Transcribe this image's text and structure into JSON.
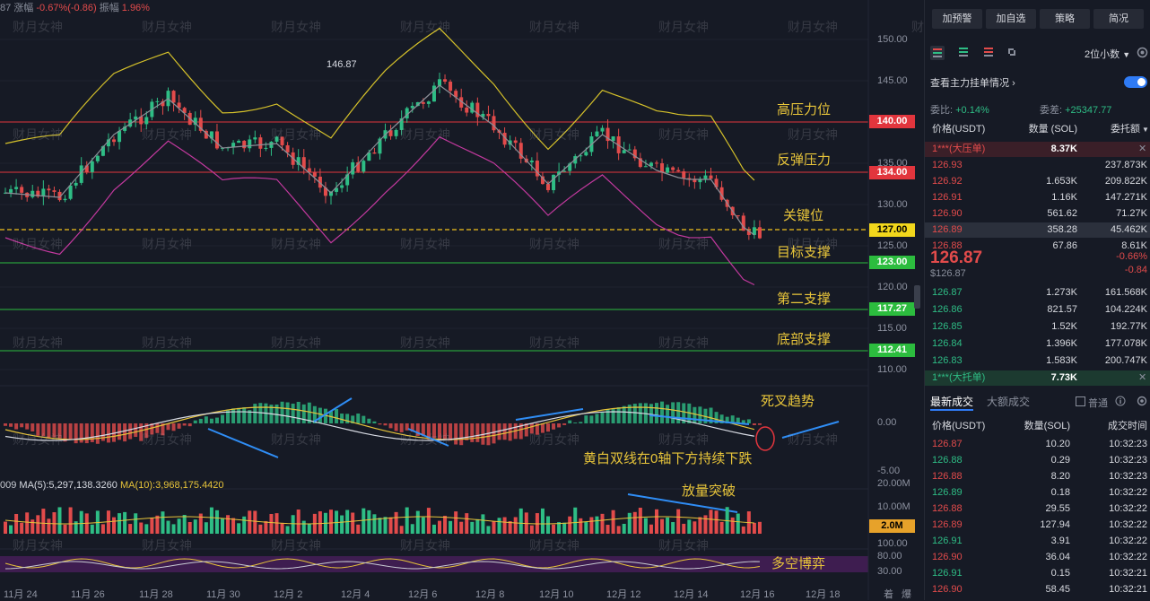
{
  "chart_header": {
    "prefix": "87",
    "change_label": "涨幅",
    "change_value": "-0.67%(-0.86)",
    "amp_label": "振幅",
    "amp_value": "1.96%"
  },
  "price_axis": [
    "150.00",
    "145.00",
    "135.00",
    "130.00",
    "125.00",
    "120.00",
    "115.00",
    "110.00"
  ],
  "macd_axis": [
    "0.00",
    "-5.00"
  ],
  "vol_axis": [
    "20.00M",
    "10.00M",
    "100.00",
    "80.00",
    "30.00"
  ],
  "price_tags": [
    {
      "label": "140.00",
      "bg": "#e2353d",
      "fg": "#ffffff"
    },
    {
      "label": "134.00",
      "bg": "#e2353d",
      "fg": "#ffffff"
    },
    {
      "label": "127.00",
      "bg": "#f2d71c",
      "fg": "#000000"
    },
    {
      "label": "123.00",
      "bg": "#2cbc3e",
      "fg": "#ffffff"
    },
    {
      "label": "117.27",
      "bg": "#2cbc3e",
      "fg": "#ffffff"
    },
    {
      "label": "112.41",
      "bg": "#2cbc3e",
      "fg": "#ffffff"
    },
    {
      "label": "2.0M",
      "bg": "#e7a22a",
      "fg": "#000000"
    }
  ],
  "high_marker": "146.87",
  "annotations": {
    "high_pressure": "高压力位",
    "rebound_pressure": "反弹压力",
    "key_level": "关键位",
    "target_support": "目标支撑",
    "second_support": "第二支撑",
    "bottom_support": "底部支撑",
    "death_cross": "死叉趋势",
    "macd_note": "黄白双线在0轴下方持续下跌",
    "volume_break": "放量突破",
    "bull_bear": "多空博弈"
  },
  "ma_info": {
    "prefix": "009",
    "ma5": "MA(5):5,297,138.3260",
    "ma10": "MA(10):3,968,175.4420"
  },
  "dates": [
    "11月 24",
    "11月 26",
    "11月 28",
    "11月 30",
    "12月 2",
    "12月 4",
    "12月 6",
    "12月 8",
    "12月 10",
    "12月 12",
    "12月 14",
    "12月 16",
    "12月 18"
  ],
  "corner_labels": [
    "着",
    "爆"
  ],
  "watermark": "财月女神",
  "colors": {
    "up": "#2ebd85",
    "down": "#e24b4b",
    "accent": "#2f7bf5",
    "bg": "#161a25"
  },
  "panel": {
    "buttons": [
      "加预警",
      "加自选",
      "策略",
      "简况"
    ],
    "decimals": "2位小数",
    "order_view": "查看主力挂单情况",
    "ratio_label": "委比:",
    "ratio_value": "+0.14%",
    "diff_label": "委差:",
    "diff_value": "+25347.77",
    "headers": {
      "price": "价格(USDT)",
      "qty": "数量 (SOL)",
      "amount": "委托额"
    },
    "ask_banner": {
      "label": "1***(大压单)",
      "value": "8.37K"
    },
    "asks": [
      {
        "price": "126.93",
        "qty": "",
        "amount": "237.873K"
      },
      {
        "price": "126.92",
        "qty": "1.653K",
        "amount": "209.822K"
      },
      {
        "price": "126.91",
        "qty": "1.16K",
        "amount": "147.271K"
      },
      {
        "price": "126.90",
        "qty": "561.62",
        "amount": "71.27K"
      },
      {
        "price": "126.89",
        "qty": "358.28",
        "amount": "45.462K"
      },
      {
        "price": "126.88",
        "qty": "67.86",
        "amount": "8.61K"
      }
    ],
    "last_price": "126.87",
    "last_price_usd": "$126.87",
    "last_change_pct": "-0.66%",
    "last_change": "-0.84",
    "bids": [
      {
        "price": "126.87",
        "qty": "1.273K",
        "amount": "161.568K"
      },
      {
        "price": "126.86",
        "qty": "821.57",
        "amount": "104.224K"
      },
      {
        "price": "126.85",
        "qty": "1.52K",
        "amount": "192.77K"
      },
      {
        "price": "126.84",
        "qty": "1.396K",
        "amount": "177.078K"
      },
      {
        "price": "126.83",
        "qty": "1.583K",
        "amount": "200.747K"
      }
    ],
    "bid_banner": {
      "label": "1***(大托单)",
      "value": "7.73K"
    },
    "trade_tabs": [
      "最新成交",
      "大额成交"
    ],
    "normal_label": "普通",
    "trade_headers": {
      "price": "价格(USDT)",
      "qty": "数量(SOL)",
      "time": "成交时间"
    },
    "trades": [
      {
        "price": "126.87",
        "qty": "10.20",
        "time": "10:32:23",
        "side": "down"
      },
      {
        "price": "126.88",
        "qty": "0.29",
        "time": "10:32:23",
        "side": "up"
      },
      {
        "price": "126.88",
        "qty": "8.20",
        "time": "10:32:23",
        "side": "down"
      },
      {
        "price": "126.89",
        "qty": "0.18",
        "time": "10:32:22",
        "side": "up"
      },
      {
        "price": "126.88",
        "qty": "29.55",
        "time": "10:32:22",
        "side": "down"
      },
      {
        "price": "126.89",
        "qty": "127.94",
        "time": "10:32:22",
        "side": "down"
      },
      {
        "price": "126.91",
        "qty": "3.91",
        "time": "10:32:22",
        "side": "up"
      },
      {
        "price": "126.90",
        "qty": "36.04",
        "time": "10:32:22",
        "side": "down"
      },
      {
        "price": "126.91",
        "qty": "0.15",
        "time": "10:32:21",
        "side": "up"
      },
      {
        "price": "126.90",
        "qty": "58.45",
        "time": "10:32:21",
        "side": "down"
      }
    ]
  }
}
